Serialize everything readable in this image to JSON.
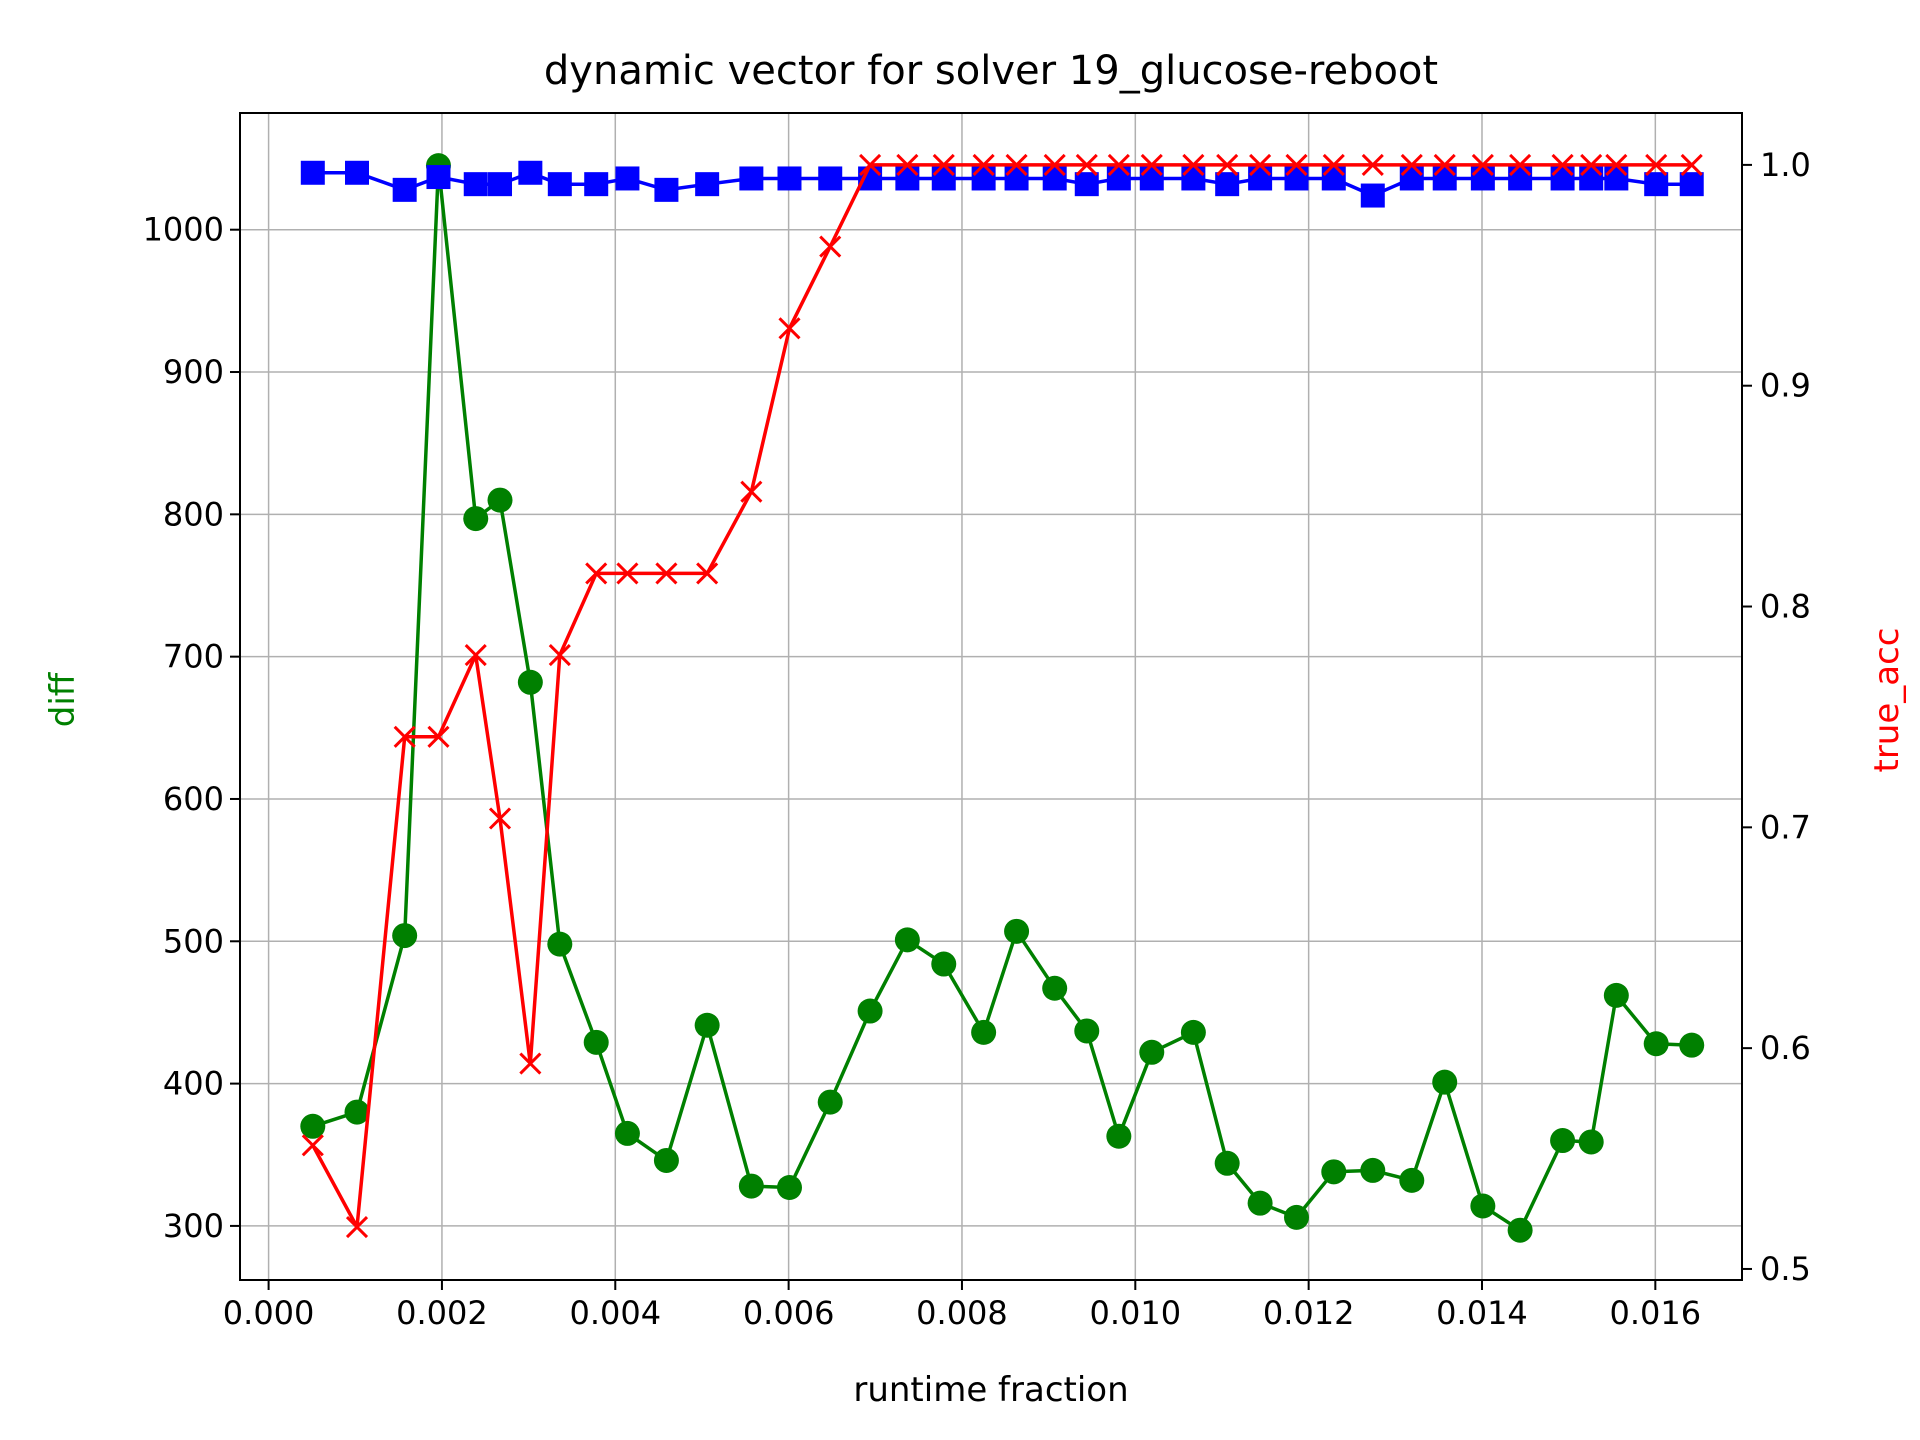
{
  "chart_data": {
    "type": "line",
    "title": "dynamic vector for solver 19_glucose-reboot",
    "xlabel": "runtime fraction",
    "ylabel_left": "diff",
    "ylabel_right": "true_acc",
    "xlim": [
      -0.00033,
      0.017
    ],
    "ylim_left": [
      262,
      1082
    ],
    "ylim_right": [
      0.495,
      1.0235
    ],
    "grid": true,
    "x_ticks": [
      0.0,
      0.002,
      0.004,
      0.006,
      0.008,
      0.01,
      0.012,
      0.014,
      0.016
    ],
    "x_tick_labels": [
      "0.000",
      "0.002",
      "0.004",
      "0.006",
      "0.008",
      "0.010",
      "0.012",
      "0.014",
      "0.016"
    ],
    "y_left_ticks": [
      300,
      400,
      500,
      600,
      700,
      800,
      900,
      1000
    ],
    "y_left_tick_labels": [
      "300",
      "400",
      "500",
      "600",
      "700",
      "800",
      "900",
      "1000"
    ],
    "y_right_ticks": [
      0.5,
      0.6,
      0.7,
      0.8,
      0.9,
      1.0
    ],
    "y_right_tick_labels": [
      "0.5",
      "0.6",
      "0.7",
      "0.8",
      "0.9",
      "1.0"
    ],
    "x": [
      0.00051,
      0.00102,
      0.00157,
      0.00196,
      0.00239,
      0.00267,
      0.00302,
      0.00336,
      0.00378,
      0.00414,
      0.00459,
      0.00506,
      0.00557,
      0.00601,
      0.00648,
      0.00694,
      0.00737,
      0.00779,
      0.00825,
      0.00863,
      0.00907,
      0.00944,
      0.00981,
      0.01019,
      0.01067,
      0.01106,
      0.01144,
      0.01186,
      0.01229,
      0.01274,
      0.01319,
      0.01357,
      0.01401,
      0.01444,
      0.01493,
      0.01526,
      0.01555,
      0.01601,
      0.01642
    ],
    "series": [
      {
        "axis": "left",
        "color": "#008000",
        "marker": "circle",
        "values": [
          370,
          380,
          504,
          1045,
          797,
          810,
          682,
          498,
          429,
          365,
          346,
          441,
          328,
          327,
          387,
          451,
          501,
          484,
          436,
          507,
          467,
          437,
          363,
          422,
          436,
          344,
          316,
          306,
          338,
          339,
          332,
          401,
          314,
          297,
          360,
          359,
          462,
          428,
          427
        ]
      },
      {
        "axis": "left",
        "color": "#0000ff",
        "marker": "square",
        "values": [
          1040,
          1040,
          1028,
          1037,
          1032,
          1032,
          1040,
          1032,
          1032,
          1036,
          1028,
          1032,
          1036,
          1036,
          1036,
          1036,
          1036,
          1036,
          1036,
          1036,
          1036,
          1032,
          1036,
          1036,
          1036,
          1032,
          1036,
          1036,
          1036,
          1024,
          1036,
          1036,
          1036,
          1036,
          1036,
          1036,
          1036,
          1032,
          1032
        ]
      },
      {
        "axis": "right",
        "color": "#ff0000",
        "marker": "x",
        "values": [
          0.556,
          0.519,
          0.741,
          0.741,
          0.778,
          0.704,
          0.593,
          0.778,
          0.815,
          0.815,
          0.815,
          0.815,
          0.852,
          0.926,
          0.963,
          1.0,
          1.0,
          1.0,
          1.0,
          1.0,
          1.0,
          1.0,
          1.0,
          1.0,
          1.0,
          1.0,
          1.0,
          1.0,
          1.0,
          1.0,
          1.0,
          1.0,
          1.0,
          1.0,
          1.0,
          1.0,
          1.0,
          1.0,
          1.0
        ]
      }
    ]
  }
}
